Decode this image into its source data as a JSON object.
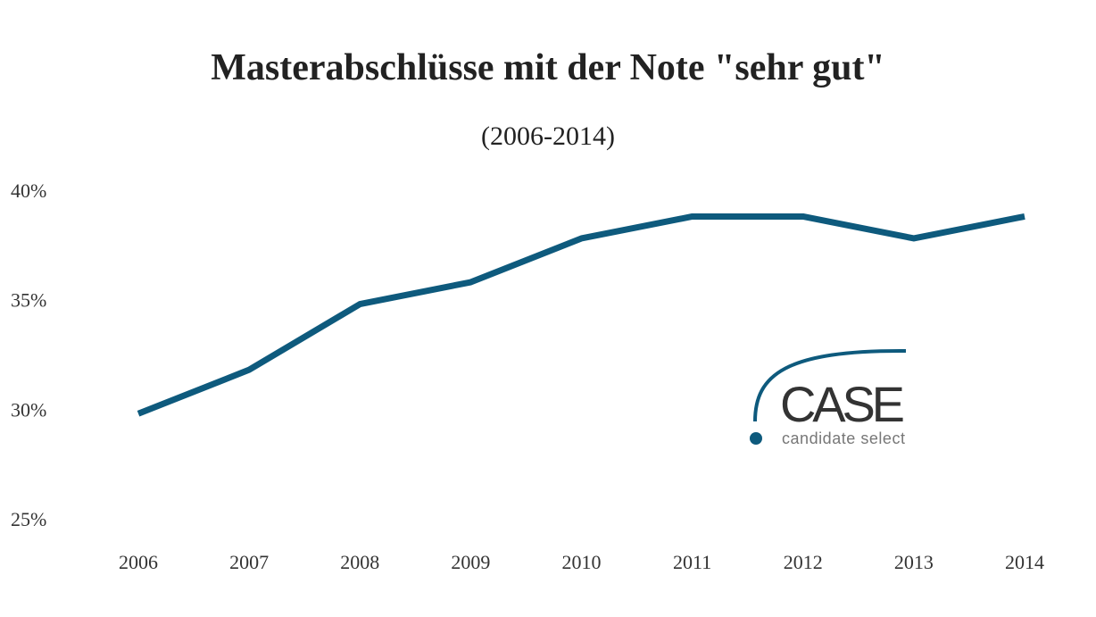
{
  "chart_data": {
    "type": "line",
    "title": "Masterabschlüsse mit der Note \"sehr gut\"",
    "subtitle": "(2006-2014)",
    "xlabel": "",
    "ylabel": "",
    "categories": [
      "2006",
      "2007",
      "2008",
      "2009",
      "2010",
      "2011",
      "2012",
      "2013",
      "2014"
    ],
    "series": [
      {
        "values": [
          29.8,
          31.8,
          34.8,
          35.8,
          37.8,
          38.8,
          38.8,
          37.8,
          38.8
        ],
        "color": "#0e5a7d"
      }
    ],
    "yticks": [
      25,
      30,
      35,
      40
    ],
    "ytick_labels": [
      "25%",
      "30%",
      "35%",
      "40%"
    ],
    "ylim": [
      25,
      40
    ],
    "grid": false,
    "legend": "none"
  },
  "logo": {
    "name": "CASE",
    "tagline": "candidate select",
    "color": "#0e5a7d"
  }
}
